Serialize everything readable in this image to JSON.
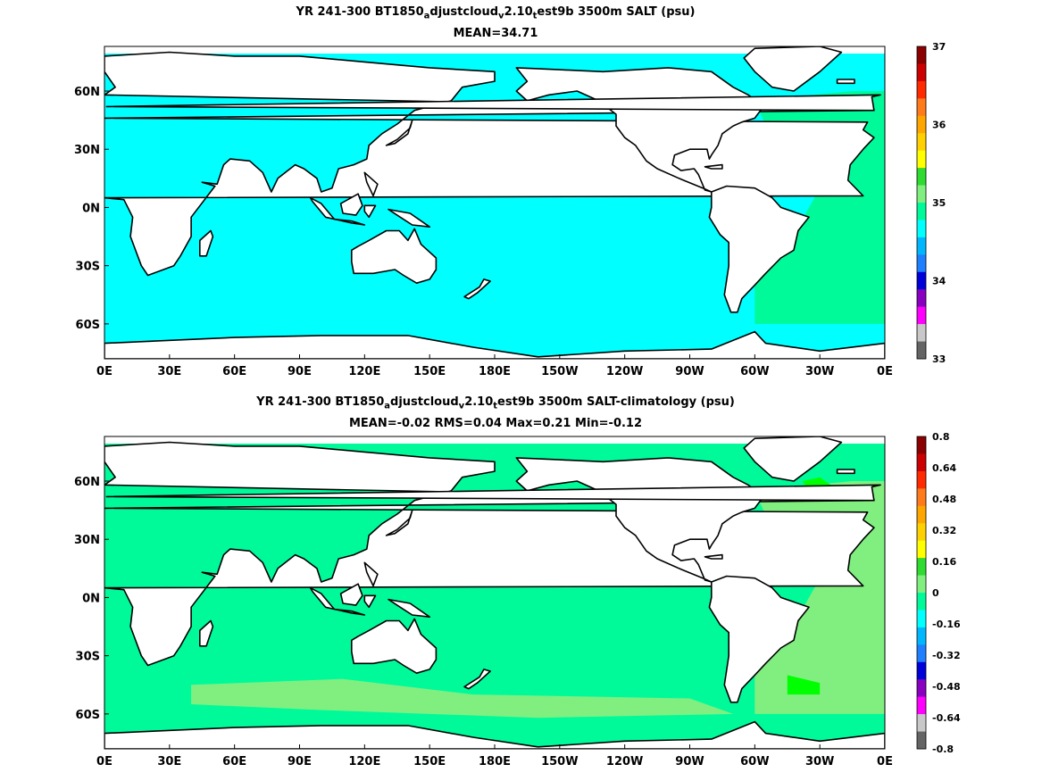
{
  "panels": [
    {
      "title_parts": [
        "YR 241-300 BT1850",
        "a",
        "djustcloud",
        "v",
        "2.10",
        "t",
        "est9b 3500m SALT (psu)"
      ],
      "stats": "MEAN=34.71",
      "colorbar": {
        "labels": [
          "37",
          "36",
          "35",
          "34",
          "33"
        ],
        "colors": [
          "#8b0000",
          "#cc0000",
          "#ff2a00",
          "#ff7a1a",
          "#ffa500",
          "#ffd000",
          "#ffff00",
          "#2edb2e",
          "#80ef80",
          "#00fa9a",
          "#00ffff",
          "#00b7ff",
          "#1e7fff",
          "#0000d9",
          "#8a00c0",
          "#ff00ff",
          "#c8c8c8",
          "#646464"
        ]
      },
      "fields": {
        "ocean": "#00ffff",
        "atlantic": "#00fa9a",
        "high": "#80ef80",
        "land": "#ffffff"
      }
    },
    {
      "title_parts": [
        "YR 241-300 BT1850",
        "a",
        "djustcloud",
        "v",
        "2.10",
        "t",
        "est9b 3500m SALT-climatology (psu)"
      ],
      "stats": "MEAN=-0.02   RMS=0.04   Max=0.21   Min=-0.12",
      "colorbar": {
        "labels": [
          "0.8",
          "0.64",
          "0.48",
          "0.32",
          "0.16",
          "0",
          "-0.16",
          "-0.32",
          "-0.48",
          "-0.64",
          "-0.8"
        ],
        "colors": [
          "#8b0000",
          "#cc0000",
          "#ff2a00",
          "#ff7a1a",
          "#ffa500",
          "#ffd000",
          "#ffff00",
          "#2edb2e",
          "#80ef80",
          "#00fa9a",
          "#00ffff",
          "#00b7ff",
          "#1e7fff",
          "#0000d9",
          "#8a00c0",
          "#ff00ff",
          "#c8c8c8",
          "#646464"
        ]
      },
      "fields": {
        "ocean": "#00fa9a",
        "atlantic": "#80ef80",
        "high": "#00ff00",
        "land": "#ffffff"
      }
    }
  ],
  "axes": {
    "lon_labels": [
      "0E",
      "30E",
      "60E",
      "90E",
      "120E",
      "150E",
      "180E",
      "150W",
      "120W",
      "90W",
      "60W",
      "30W",
      "0E"
    ],
    "lat_labels": [
      "60N",
      "30N",
      "0N",
      "30S",
      "60S"
    ]
  }
}
